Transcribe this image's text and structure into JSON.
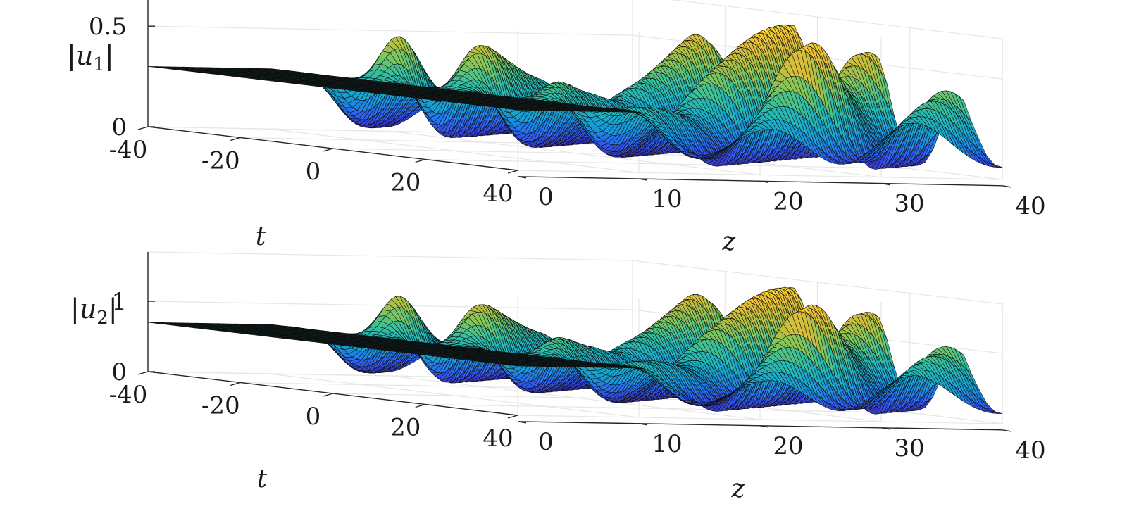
{
  "chart_data": [
    {
      "type": "surface",
      "zlabel_var": "u",
      "zlabel_sub": "1",
      "xlabel": "t",
      "ylabel": "z",
      "xlim": [
        -40,
        40
      ],
      "ylim": [
        0,
        40
      ],
      "zlim": [
        0,
        0.7
      ],
      "x_ticks": [
        "-40",
        "-20",
        "0",
        "20",
        "40"
      ],
      "y_ticks": [
        "0",
        "10",
        "20",
        "30",
        "40"
      ],
      "z_ticks": [
        "0",
        "0.5"
      ],
      "x_tick_values": [
        -40,
        -20,
        0,
        20,
        40
      ],
      "y_tick_values": [
        0,
        10,
        20,
        30,
        40
      ],
      "z_tick_values": [
        0,
        0.5
      ],
      "background_level": 0.3,
      "peak_level": 0.65,
      "min_level": 0.02,
      "onset_z": 10,
      "grid": "on",
      "colormap": [
        "#3e26a8",
        "#2f5cf6",
        "#1794d8",
        "#1bb1c4",
        "#35bf9c",
        "#7fc65b",
        "#c1be3c",
        "#f2be38",
        "#f9e225"
      ]
    },
    {
      "type": "surface",
      "zlabel_var": "u",
      "zlabel_sub": "2",
      "xlabel": "t",
      "ylabel": "z",
      "xlim": [
        -40,
        40
      ],
      "ylim": [
        0,
        40
      ],
      "zlim": [
        0,
        1.7
      ],
      "x_ticks": [
        "-40",
        "-20",
        "0",
        "20",
        "40"
      ],
      "y_ticks": [
        "0",
        "10",
        "20",
        "30",
        "40"
      ],
      "z_ticks": [
        "0",
        "1"
      ],
      "x_tick_values": [
        -40,
        -20,
        0,
        20,
        40
      ],
      "y_tick_values": [
        0,
        10,
        20,
        30,
        40
      ],
      "z_tick_values": [
        0,
        1
      ],
      "background_level": 0.7,
      "peak_level": 1.6,
      "min_level": 0.05,
      "onset_z": 10,
      "grid": "on",
      "colormap": [
        "#3e26a8",
        "#2f5cf6",
        "#1794d8",
        "#1bb1c4",
        "#35bf9c",
        "#7fc65b",
        "#c1be3c",
        "#f2be38",
        "#f9e225"
      ]
    }
  ]
}
